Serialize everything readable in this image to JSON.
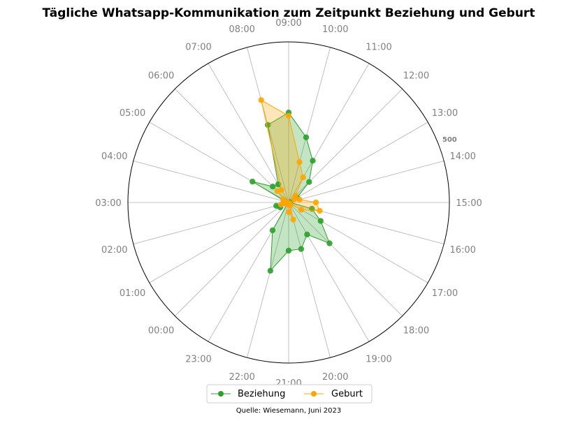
{
  "chart_data": {
    "type": "radar",
    "title": "Tägliche Whatsapp-Kommunikation zum Zeitpunkt Beziehung und Geburt",
    "categories": [
      "00:00",
      "01:00",
      "02:00",
      "03:00",
      "04:00",
      "05:00",
      "06:00",
      "07:00",
      "08:00",
      "09:00",
      "10:00",
      "11:00",
      "12:00",
      "13:00",
      "14:00",
      "15:00",
      "16:00",
      "17:00",
      "18:00",
      "19:00",
      "20:00",
      "21:00",
      "22:00",
      "23:00"
    ],
    "r_max": 500,
    "r_tick_label": "500",
    "grid": true,
    "legend_position": "bottom",
    "series": [
      {
        "name": "Beziehung",
        "color": "#2ca02c",
        "fill": "#c2e3c2",
        "values": [
          5,
          30,
          40,
          15,
          10,
          130,
          70,
          65,
          250,
          280,
          210,
          150,
          90,
          30,
          5,
          5,
          75,
          115,
          180,
          115,
          150,
          150,
          220,
          100
        ]
      },
      {
        "name": "Geburt",
        "color": "#ffa500",
        "fill": "#fde3b5",
        "values": [
          8,
          5,
          25,
          12,
          5,
          20,
          50,
          45,
          330,
          270,
          130,
          90,
          30,
          20,
          35,
          85,
          100,
          45,
          5,
          10,
          55,
          30,
          5,
          5
        ]
      }
    ]
  },
  "source": "Quelle: Wiesemann, Juni 2023"
}
